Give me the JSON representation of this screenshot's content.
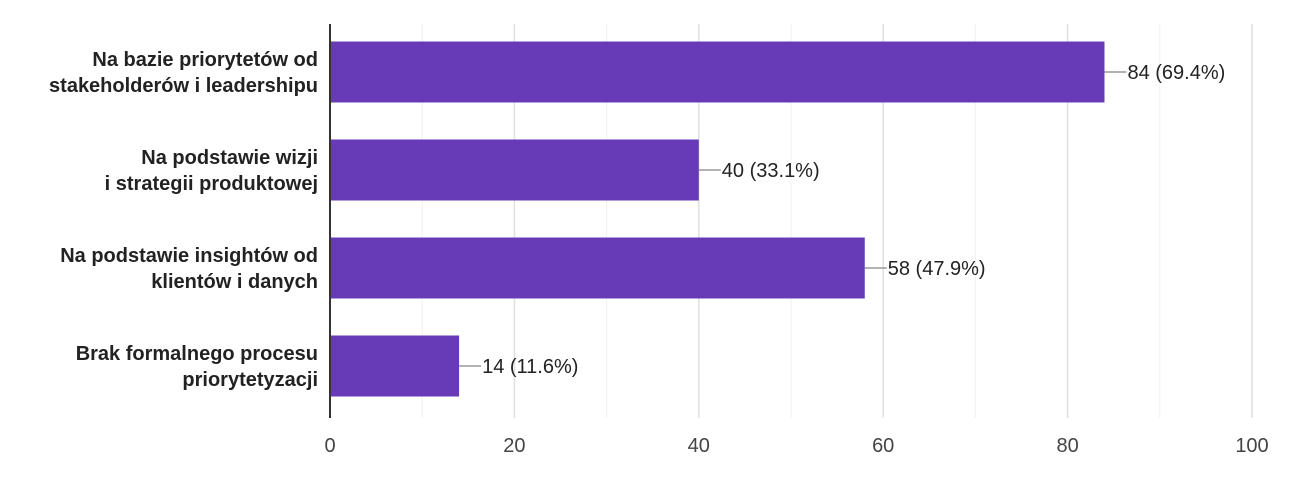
{
  "chart_data": {
    "type": "bar",
    "orientation": "horizontal",
    "categories": [
      [
        "Na bazie priorytetów od",
        "stakeholderów i leadershipu"
      ],
      [
        "Na podstawie wizji",
        "i strategii produktowej"
      ],
      [
        "Na podstawie insightów od",
        "klientów i danych"
      ],
      [
        "Brak formalnego procesu",
        "priorytetyzacji"
      ]
    ],
    "values": [
      84,
      40,
      58,
      14
    ],
    "data_labels": [
      "84 (69.4%)",
      "40 (33.1%)",
      "58 (47.9%)",
      "14 (11.6%)"
    ],
    "xlim": [
      0,
      100
    ],
    "xticks": [
      0,
      20,
      40,
      60,
      80,
      100
    ],
    "grid": true,
    "legend": "none",
    "colors": {
      "bar": "#673ab7",
      "grid": "#e0e0e0",
      "axis": "#333333",
      "leader": "#999999",
      "text": "#222222"
    }
  }
}
